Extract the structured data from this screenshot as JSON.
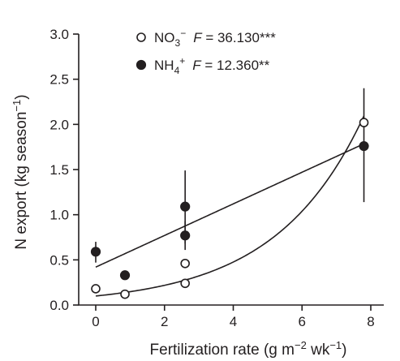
{
  "chart_data": {
    "type": "scatter",
    "xlabel_main": "Fertilization rate (g m",
    "xlabel_sup1": "−2",
    "xlabel_mid": " wk",
    "xlabel_sup2": "−1",
    "xlabel_end": ")",
    "ylabel_main": "N export (kg season",
    "ylabel_sup": "−1",
    "ylabel_end": ")",
    "xlim": [
      -0.3,
      8.2
    ],
    "ylim": [
      0,
      3.0
    ],
    "xticks": [
      "0",
      "2",
      "4",
      "6",
      "8"
    ],
    "xtick_values": [
      0,
      2,
      4,
      6,
      8
    ],
    "yticks": [
      "0.0",
      "0.5",
      "1.0",
      "1.5",
      "2.0",
      "2.5",
      "3.0"
    ],
    "ytick_values": [
      0,
      0.5,
      1.0,
      1.5,
      2.0,
      2.5,
      3.0
    ],
    "series": [
      {
        "name_base": "NO",
        "name_sub": "3",
        "name_sup": "−",
        "stat_label": "F",
        "stat_value": " = 36.130***",
        "marker": "open-circle",
        "points": [
          {
            "x": 0,
            "y": 0.18,
            "lo": 0.18,
            "hi": 0.18
          },
          {
            "x": 0.85,
            "y": 0.12,
            "lo": 0.12,
            "hi": 0.12
          },
          {
            "x": 2.6,
            "y": 0.24,
            "lo": 0.24,
            "hi": 0.24
          },
          {
            "x": 2.6,
            "y": 0.46,
            "lo": 0.46,
            "hi": 0.46
          },
          {
            "x": 7.8,
            "y": 2.02,
            "lo": 2.02,
            "hi": 2.02
          }
        ],
        "fit": {
          "kind": "exponential",
          "a": 0.1,
          "b": 0.39
        }
      },
      {
        "name_base": "NH",
        "name_sub": "4",
        "name_sup": "+",
        "stat_label": "F",
        "stat_value": " = 12.360**",
        "marker": "filled-circle",
        "points": [
          {
            "x": 0,
            "y": 0.59,
            "lo": 0.47,
            "hi": 0.7
          },
          {
            "x": 0.85,
            "y": 0.33,
            "lo": 0.28,
            "hi": 0.37
          },
          {
            "x": 2.6,
            "y": 1.09,
            "lo": 0.68,
            "hi": 1.49
          },
          {
            "x": 2.6,
            "y": 0.77,
            "lo": 0.61,
            "hi": 0.93
          },
          {
            "x": 7.8,
            "y": 1.76,
            "lo": 1.14,
            "hi": 2.4
          }
        ],
        "fit": {
          "kind": "linear",
          "intercept": 0.42,
          "slope": 0.175
        }
      }
    ]
  }
}
